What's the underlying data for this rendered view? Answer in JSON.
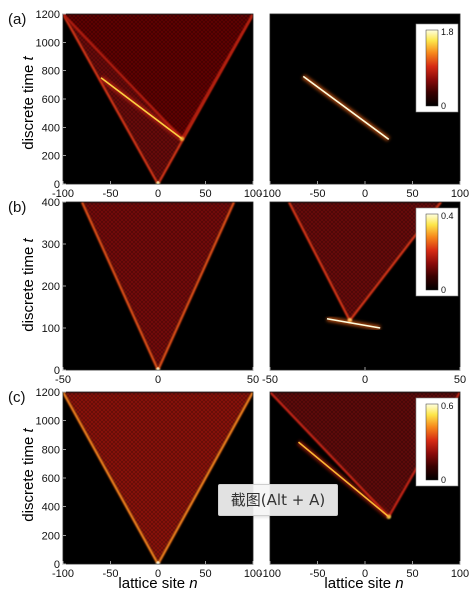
{
  "figure": {
    "common_xlabel": {
      "prefix": "lattice site ",
      "variable": "n"
    },
    "common_ylabel": {
      "prefix": "discrete time ",
      "variable": "t"
    }
  },
  "overlay": {
    "label": "截图(Alt + A)"
  },
  "colormap": {
    "name": "hot",
    "stops": [
      "#000000",
      "#3a0000",
      "#8b0a0a",
      "#d62a14",
      "#f7891c",
      "#fde64a",
      "#ffffe0"
    ]
  },
  "chart_data": [
    {
      "id": "a-left",
      "row_label": "(a)",
      "type": "heatmap",
      "xlim": [
        -100,
        100
      ],
      "ylim": [
        0,
        1200
      ],
      "xticks": [
        -100,
        -50,
        0,
        50,
        100
      ],
      "xticklabels": [
        "-100",
        "-50",
        "0",
        "50",
        "100"
      ],
      "yticks": [
        0,
        200,
        400,
        600,
        800,
        1000,
        1200
      ],
      "features": [
        {
          "kind": "cone",
          "apex": [
            0,
            0
          ],
          "left_top": [
            -100,
            1200
          ],
          "right_top": [
            100,
            1200
          ],
          "intensity": 0.55
        },
        {
          "kind": "cone",
          "apex": [
            25,
            320
          ],
          "left_top": [
            -100,
            1200
          ],
          "right_top": [
            100,
            1200
          ],
          "intensity": 0.45
        },
        {
          "kind": "line",
          "from": [
            -60,
            750
          ],
          "to": [
            25,
            320
          ],
          "intensity": 0.8
        }
      ]
    },
    {
      "id": "a-right",
      "type": "heatmap",
      "xlim": [
        -100,
        100
      ],
      "ylim": [
        0,
        1200
      ],
      "xticks": [
        -100,
        -50,
        0,
        50,
        100
      ],
      "xticklabels": [
        "-100",
        "-50",
        "0",
        "50",
        "100"
      ],
      "features": [
        {
          "kind": "line",
          "from": [
            -65,
            760
          ],
          "to": [
            25,
            315
          ],
          "intensity": 1.0
        }
      ],
      "colorbar": {
        "max_label": "1.8",
        "min_label": "0"
      }
    },
    {
      "id": "b-left",
      "row_label": "(b)",
      "type": "heatmap",
      "xlim": [
        -50,
        50
      ],
      "ylim": [
        0,
        400
      ],
      "xticks": [
        -50,
        0,
        50
      ],
      "xticklabels": [
        "-50",
        "0",
        "50"
      ],
      "yticks": [
        0,
        100,
        200,
        300,
        400
      ],
      "features": [
        {
          "kind": "cone",
          "apex": [
            0,
            0
          ],
          "left_top": [
            -40,
            400
          ],
          "right_top": [
            40,
            400
          ],
          "intensity": 0.6
        }
      ]
    },
    {
      "id": "b-right",
      "type": "heatmap",
      "xlim": [
        -50,
        50
      ],
      "ylim": [
        0,
        400
      ],
      "xticks": [
        -50,
        0,
        50
      ],
      "xticklabels": [
        "-50",
        "0",
        "50"
      ],
      "features": [
        {
          "kind": "cone",
          "apex": [
            -8,
            118
          ],
          "left_top": [
            -40,
            400
          ],
          "right_top": [
            40,
            400
          ],
          "intensity": 0.55
        },
        {
          "kind": "line",
          "from": [
            -20,
            122
          ],
          "to": [
            8,
            100
          ],
          "intensity": 1.0
        }
      ],
      "colorbar": {
        "max_label": "0.4",
        "min_label": "0"
      }
    },
    {
      "id": "c-left",
      "row_label": "(c)",
      "type": "heatmap",
      "xlim": [
        -100,
        100
      ],
      "ylim": [
        0,
        1200
      ],
      "xticks": [
        -100,
        -50,
        0,
        50,
        100
      ],
      "xticklabels": [
        "-100",
        "-50",
        "0",
        "50",
        "100"
      ],
      "yticks": [
        0,
        200,
        400,
        600,
        800,
        1000,
        1200
      ],
      "features": [
        {
          "kind": "cone",
          "apex": [
            0,
            0
          ],
          "left_top": [
            -100,
            1200
          ],
          "right_top": [
            100,
            1200
          ],
          "intensity": 0.7
        }
      ]
    },
    {
      "id": "c-right",
      "type": "heatmap",
      "xlim": [
        -100,
        100
      ],
      "ylim": [
        0,
        1200
      ],
      "xticks": [
        -100,
        -50,
        0,
        50,
        100
      ],
      "xticklabels": [
        "-100",
        "-50",
        "0",
        "50",
        "100"
      ],
      "features": [
        {
          "kind": "cone",
          "apex": [
            25,
            330
          ],
          "left_top": [
            -100,
            1200
          ],
          "right_top": [
            100,
            1200
          ],
          "intensity": 0.5
        },
        {
          "kind": "line",
          "from": [
            -70,
            850
          ],
          "to": [
            25,
            330
          ],
          "intensity": 0.75
        }
      ],
      "colorbar": {
        "max_label": "0.6",
        "min_label": "0"
      }
    }
  ]
}
